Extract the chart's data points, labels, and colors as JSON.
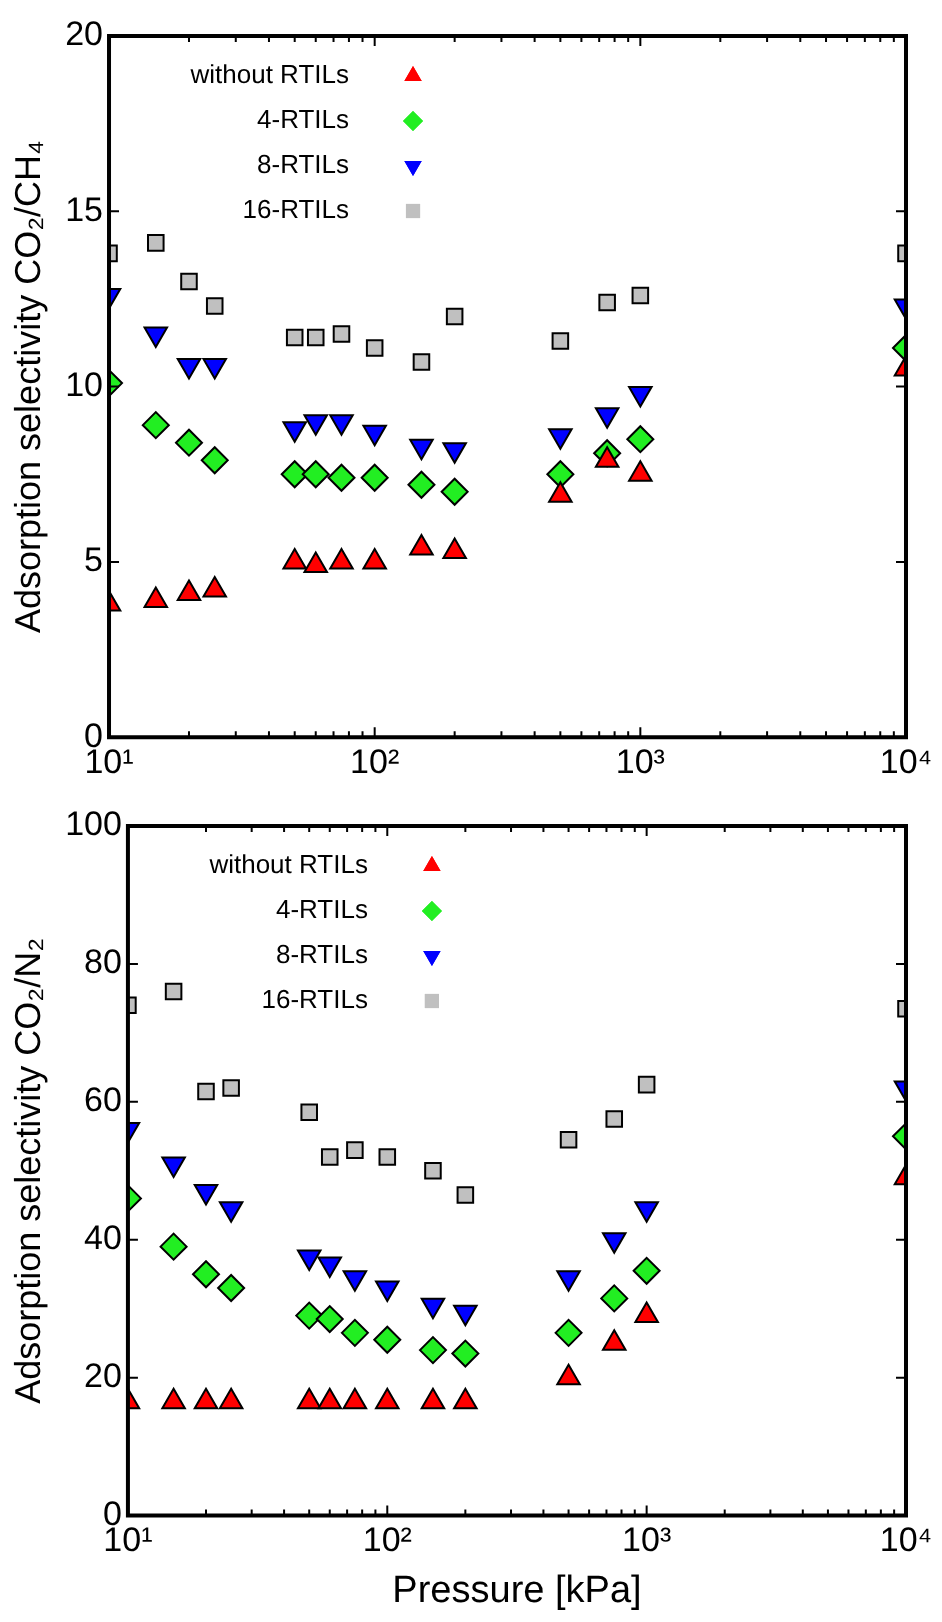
{
  "chart_data": [
    {
      "type": "scatter",
      "ylabel": "Adsorption selectivity CO₂/CH₄",
      "log": "x",
      "grid": false,
      "legend": "top left",
      "x": [
        10,
        15,
        20,
        25,
        50,
        60,
        75,
        100,
        150,
        200,
        500,
        750,
        1000,
        10000
      ],
      "xlim": [
        10,
        10000
      ],
      "xticks": [
        {
          "value": 10,
          "label": "10¹"
        },
        {
          "value": 100,
          "label": "10²"
        },
        {
          "value": 1000,
          "label": "10³"
        },
        {
          "value": 10000,
          "label": "10⁴"
        }
      ],
      "ylim": [
        0,
        20
      ],
      "yticks": [
        0,
        5,
        10,
        15,
        20
      ],
      "series": [
        {
          "name": "without RTILs",
          "color": "#ff0000",
          "marker": "triangle",
          "values": [
            3.8,
            3.9,
            4.1,
            4.2,
            5.0,
            4.9,
            5.0,
            5.0,
            5.4,
            5.3,
            6.9,
            7.9,
            7.5,
            10.5
          ]
        },
        {
          "name": "4-RTILs",
          "color": "#22ee22",
          "marker": "diamond",
          "values": [
            10.1,
            8.9,
            8.4,
            7.9,
            7.5,
            7.5,
            7.4,
            7.4,
            7.2,
            7.0,
            7.5,
            8.1,
            8.5,
            11.1
          ]
        },
        {
          "name": "8-RTILs",
          "color": "#0000ff",
          "marker": "triangle-down",
          "values": [
            12.6,
            11.5,
            10.6,
            10.6,
            8.8,
            9.0,
            9.0,
            8.7,
            8.3,
            8.2,
            8.6,
            9.2,
            9.8,
            12.3
          ]
        },
        {
          "name": "16-RTILs",
          "color": "#c0c0c0",
          "marker": "square",
          "values": [
            13.8,
            14.1,
            13.0,
            12.3,
            11.4,
            11.4,
            11.5,
            11.1,
            10.7,
            12.0,
            11.3,
            12.4,
            12.6,
            13.8
          ]
        }
      ]
    },
    {
      "type": "scatter",
      "ylabel": "Adsorption selectivity CO₂/N₂",
      "xlabel": "Pressure [kPa]",
      "log": "x",
      "grid": false,
      "legend": "top left",
      "x": [
        10,
        15,
        20,
        25,
        50,
        60,
        75,
        100,
        150,
        200,
        500,
        750,
        1000,
        10000
      ],
      "xlim": [
        10,
        10000
      ],
      "xticks": [
        {
          "value": 10,
          "label": "10¹"
        },
        {
          "value": 100,
          "label": "10²"
        },
        {
          "value": 1000,
          "label": "10³"
        },
        {
          "value": 10000,
          "label": "10⁴"
        }
      ],
      "ylim": [
        0,
        100
      ],
      "yticks": [
        0,
        20,
        40,
        60,
        80,
        100
      ],
      "series": [
        {
          "name": "without RTILs",
          "color": "#ff0000",
          "marker": "triangle",
          "values": [
            16.5,
            16.5,
            16.5,
            16.5,
            16.5,
            16.5,
            16.5,
            16.5,
            16.5,
            16.5,
            20,
            25,
            29,
            49
          ]
        },
        {
          "name": "4-RTILs",
          "color": "#22ee22",
          "marker": "diamond",
          "values": [
            46,
            39,
            35,
            33,
            29,
            28.5,
            26.5,
            25.5,
            24,
            23.5,
            26.5,
            31.5,
            35.5,
            55
          ]
        },
        {
          "name": "8-RTILs",
          "color": "#0000ff",
          "marker": "triangle-down",
          "values": [
            56,
            51,
            47,
            44.5,
            37.5,
            36.5,
            34.5,
            33,
            30.5,
            29.5,
            34.5,
            40,
            44.5,
            62
          ]
        },
        {
          "name": "16-RTILs",
          "color": "#c0c0c0",
          "marker": "square",
          "values": [
            74,
            76,
            61.5,
            62,
            58.5,
            52,
            53,
            52,
            50,
            46.5,
            54.5,
            57.5,
            62.5,
            73.5
          ]
        }
      ]
    }
  ]
}
